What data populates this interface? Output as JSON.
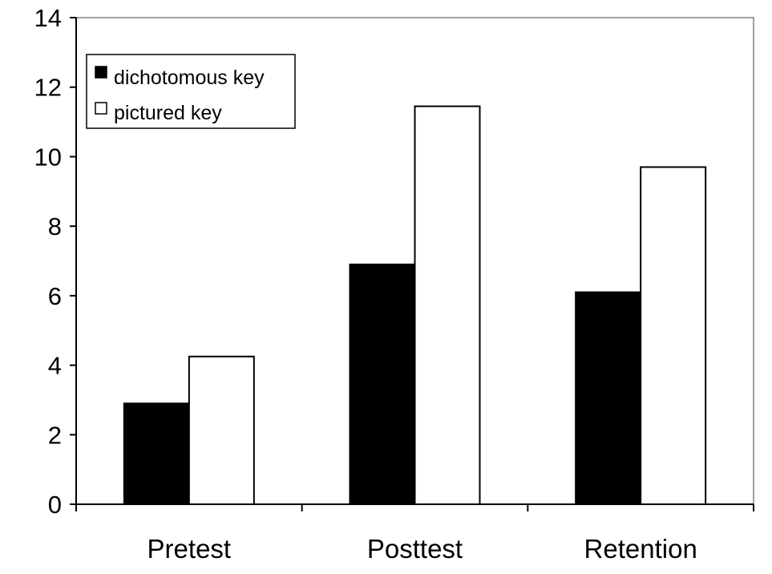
{
  "chart_data": {
    "type": "bar",
    "title": "",
    "xlabel": "",
    "ylabel": "",
    "categories": [
      "Pretest",
      "Posttest",
      "Retention"
    ],
    "series": [
      {
        "name": "dichotomous key",
        "values": [
          2.9,
          6.9,
          6.1
        ],
        "color": "#000000"
      },
      {
        "name": "pictured key",
        "values": [
          4.25,
          11.45,
          9.7
        ],
        "color": "#ffffff"
      }
    ],
    "ylim": [
      0,
      14
    ],
    "yticks": [
      "0",
      "2",
      "4",
      "6",
      "8",
      "10",
      "12",
      "14"
    ],
    "grid": false,
    "legend_position": "top-left"
  }
}
